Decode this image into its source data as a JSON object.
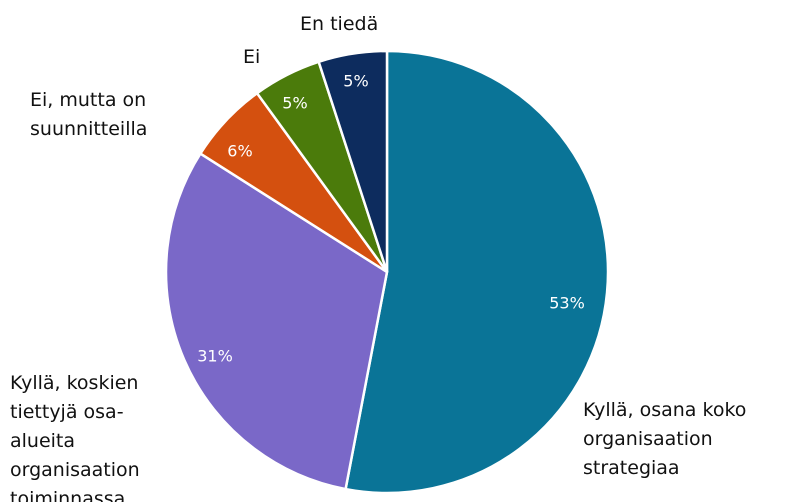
{
  "chart_data": {
    "type": "pie",
    "categories": [
      "Kyllä, osana koko organisaation strategiaa",
      "Kyllä, koskien tiettyjä osa-alueita organisaation toiminnassa",
      "Ei, mutta on suunnitteilla",
      "Ei",
      "En tiedä"
    ],
    "values": [
      53,
      31,
      6,
      5,
      5
    ],
    "value_labels": [
      "53%",
      "31%",
      "6%",
      "5%",
      "5%"
    ],
    "colors": [
      "#0a7497",
      "#7a68c8",
      "#d4500f",
      "#4b7b0b",
      "#0d2c5e"
    ]
  }
}
